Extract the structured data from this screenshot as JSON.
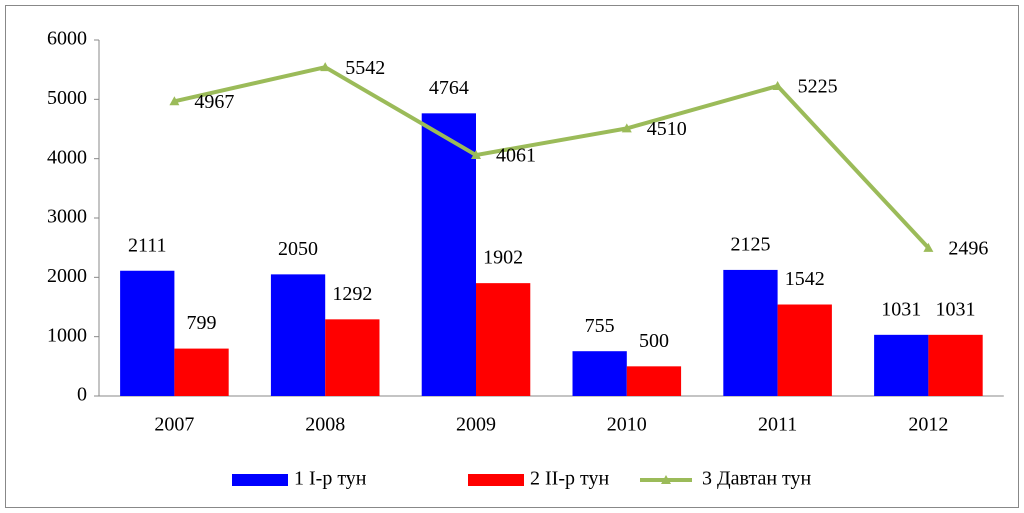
{
  "chart_data": {
    "type": "bar",
    "categories": [
      "2007",
      "2008",
      "2009",
      "2010",
      "2011",
      "2012"
    ],
    "series": [
      {
        "name": "1 I-р тун",
        "color": "#0000ff",
        "values": [
          2111,
          2050,
          4764,
          755,
          2125,
          1031
        ]
      },
      {
        "name": "2 II-р тун",
        "color": "#ff0000",
        "values": [
          799,
          1292,
          1902,
          500,
          1542,
          1031
        ]
      },
      {
        "name": "3 Давтан тун",
        "color": "#9bbb59",
        "type": "line",
        "values": [
          4967,
          5542,
          4061,
          4510,
          5225,
          2496
        ]
      }
    ],
    "ylim": [
      0,
      6000
    ],
    "yticks": [
      0,
      1000,
      2000,
      3000,
      4000,
      5000,
      6000
    ],
    "grid": false,
    "legend": "bottom"
  }
}
